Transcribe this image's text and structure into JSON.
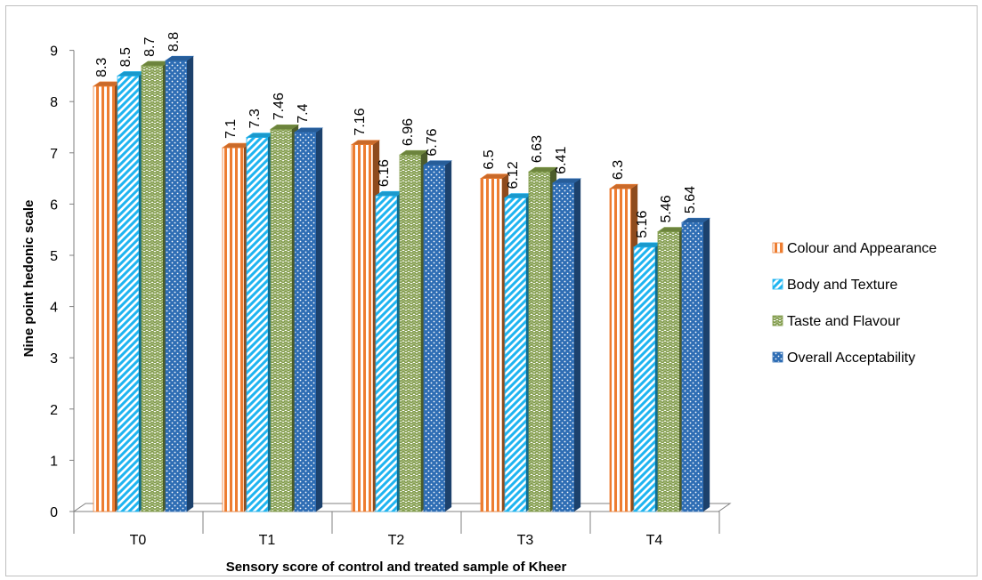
{
  "chart_data": {
    "type": "bar",
    "xlabel": "Sensory score of control and treated sample of Kheer",
    "ylabel": "Nine point hedonic scale",
    "ylim": [
      0,
      9
    ],
    "yticks": [
      "0",
      "1",
      "2",
      "3",
      "4",
      "5",
      "6",
      "7",
      "8",
      "9"
    ],
    "categories": [
      "T0",
      "T1",
      "T2",
      "T3",
      "T4"
    ],
    "series": [
      {
        "name": "Colour and Appearance",
        "values": [
          8.3,
          7.1,
          7.16,
          6.5,
          6.3
        ],
        "labels": [
          "8.3",
          "7.1",
          "7.16",
          "6.5",
          "6.3"
        ],
        "color": "#ED7D31",
        "pattern": "vertical-stripes"
      },
      {
        "name": "Body and Texture",
        "values": [
          8.5,
          7.3,
          6.16,
          6.12,
          5.16
        ],
        "labels": [
          "8.5",
          "7.3",
          "6.16",
          "6.12",
          "5.16"
        ],
        "color": "#1FB4F0",
        "pattern": "diagonal-stripes"
      },
      {
        "name": "Taste and Flavour",
        "values": [
          8.7,
          7.46,
          6.96,
          6.63,
          5.46
        ],
        "labels": [
          "8.7",
          "7.46",
          "6.96",
          "6.63",
          "5.46"
        ],
        "color": "#7F9A48",
        "pattern": "zigzag"
      },
      {
        "name": "Overall Acceptability",
        "values": [
          8.8,
          7.4,
          6.76,
          6.41,
          5.64
        ],
        "labels": [
          "8.8",
          "7.4",
          "6.76",
          "6.41",
          "5.64"
        ],
        "color": "#2E6DB4",
        "pattern": "dots"
      }
    ],
    "legend_position": "right",
    "grid": false,
    "style": "3d-clustered-column"
  }
}
